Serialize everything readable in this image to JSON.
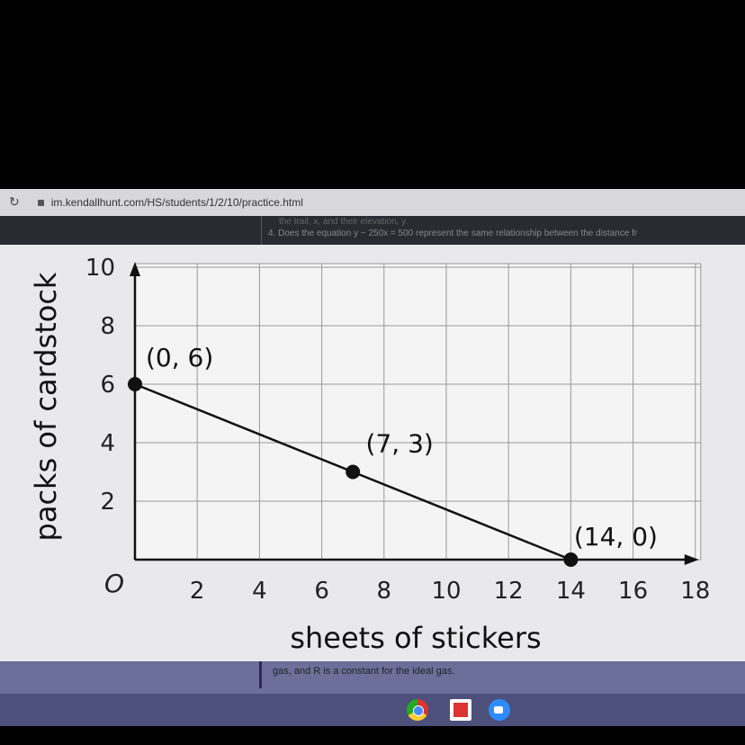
{
  "browser": {
    "url": "im.kendallhunt.com/HS/students/1/2/10/practice.html",
    "reload_icon": "reload-icon",
    "lock_icon": "lock-icon"
  },
  "page": {
    "top_text_partial": "the trail, x, and their elevation, y.",
    "question_text": "4. Does the equation y − 250x = 500 represent the same relationship between the distance fr",
    "bottom_text": "gas, and R is a constant for the ideal gas."
  },
  "taskbar": {
    "icons": [
      "chrome-icon",
      "slides-icon",
      "zoom-icon"
    ]
  },
  "chart_data": {
    "type": "line",
    "xlabel": "sheets of stickers",
    "ylabel": "packs of cardstock",
    "xlim": [
      0,
      18
    ],
    "ylim": [
      0,
      10
    ],
    "x_ticks": [
      "2",
      "4",
      "6",
      "8",
      "10",
      "12",
      "14",
      "16",
      "18"
    ],
    "y_ticks": [
      "2",
      "4",
      "6",
      "8",
      "10"
    ],
    "origin_label": "O",
    "grid": true,
    "points": [
      {
        "x": 0,
        "y": 6,
        "label": "(0, 6)"
      },
      {
        "x": 7,
        "y": 3,
        "label": "(7, 3)"
      },
      {
        "x": 14,
        "y": 0,
        "label": "(14, 0)"
      }
    ],
    "line_color": "#111111"
  }
}
